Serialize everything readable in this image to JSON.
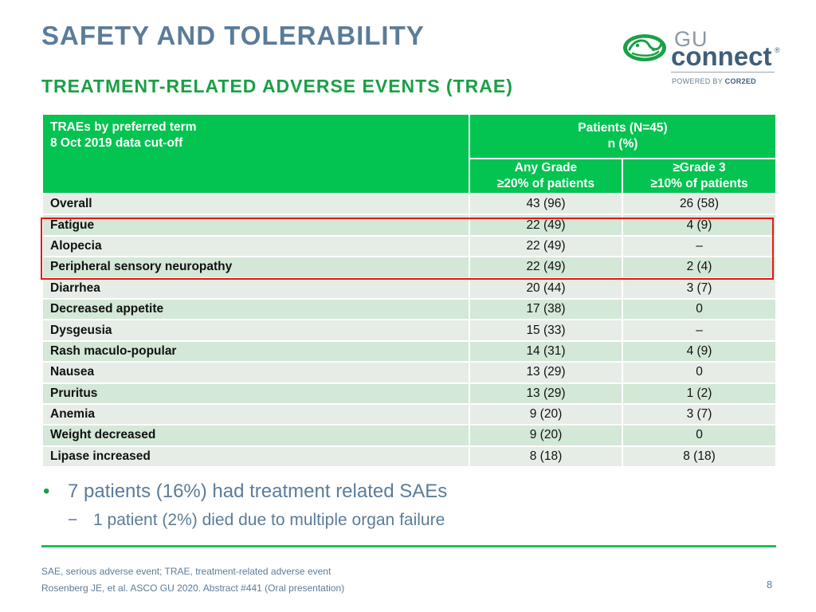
{
  "title": "SAFETY AND TOLERABILITY",
  "subtitle": "TREATMENT-RELATED ADVERSE EVENTS (TRAE)",
  "logo": {
    "gu": "GU",
    "connect": "connect",
    "registered": "®",
    "powered_by": "POWERED BY ",
    "cor2ed": "COR2ED",
    "icon": "gu-connect-logo-icon",
    "brand_color": "#1aa046",
    "dark_color": "#3f5f79"
  },
  "table": {
    "header_left": [
      "TRAEs by preferred term",
      "8 Oct 2019 data cut-off"
    ],
    "header_patients": [
      "Patients (N=45)",
      "n (%)"
    ],
    "header_any": [
      "Any Grade",
      "≥20% of patients"
    ],
    "header_grade3": [
      "≥Grade 3",
      "≥10% of patients"
    ],
    "header_color": "#03c351",
    "rows": [
      {
        "term": "Overall",
        "any": "43 (96)",
        "g3": "26 (58)"
      },
      {
        "term": "Fatigue",
        "any": "22 (49)",
        "g3": "4 (9)"
      },
      {
        "term": "Alopecia",
        "any": "22 (49)",
        "g3": "–"
      },
      {
        "term": "Peripheral sensory neuropathy",
        "any": "22 (49)",
        "g3": "2 (4)"
      },
      {
        "term": "Diarrhea",
        "any": "20 (44)",
        "g3": "3 (7)"
      },
      {
        "term": "Decreased appetite",
        "any": "17 (38)",
        "g3": "0"
      },
      {
        "term": "Dysgeusia",
        "any": "15 (33)",
        "g3": "–"
      },
      {
        "term": "Rash maculo-popular",
        "any": "14 (31)",
        "g3": "4 (9)"
      },
      {
        "term": "Nausea",
        "any": "13 (29)",
        "g3": "0"
      },
      {
        "term": "Pruritus",
        "any": "13 (29)",
        "g3": "1 (2)"
      },
      {
        "term": "Anemia",
        "any": "9 (20)",
        "g3": "3 (7)"
      },
      {
        "term": "Weight decreased",
        "any": "9 (20)",
        "g3": "0"
      },
      {
        "term": "Lipase increased",
        "any": "8 (18)",
        "g3": "8 (18)"
      }
    ],
    "highlight_color": "#e8151b"
  },
  "bullets": {
    "main": "7 patients (16%) had treatment related SAEs",
    "sub": "1 patient (2%) died due to multiple organ failure",
    "bullet_glyph": "•",
    "dash_glyph": "−"
  },
  "footnotes": {
    "abbreviations": "SAE, serious adverse event; TRAE, treatment-related adverse event",
    "reference": "Rosenberg JE, et al. ASCO GU 2020. Abstract #441 (Oral presentation)"
  },
  "page_number": "8"
}
